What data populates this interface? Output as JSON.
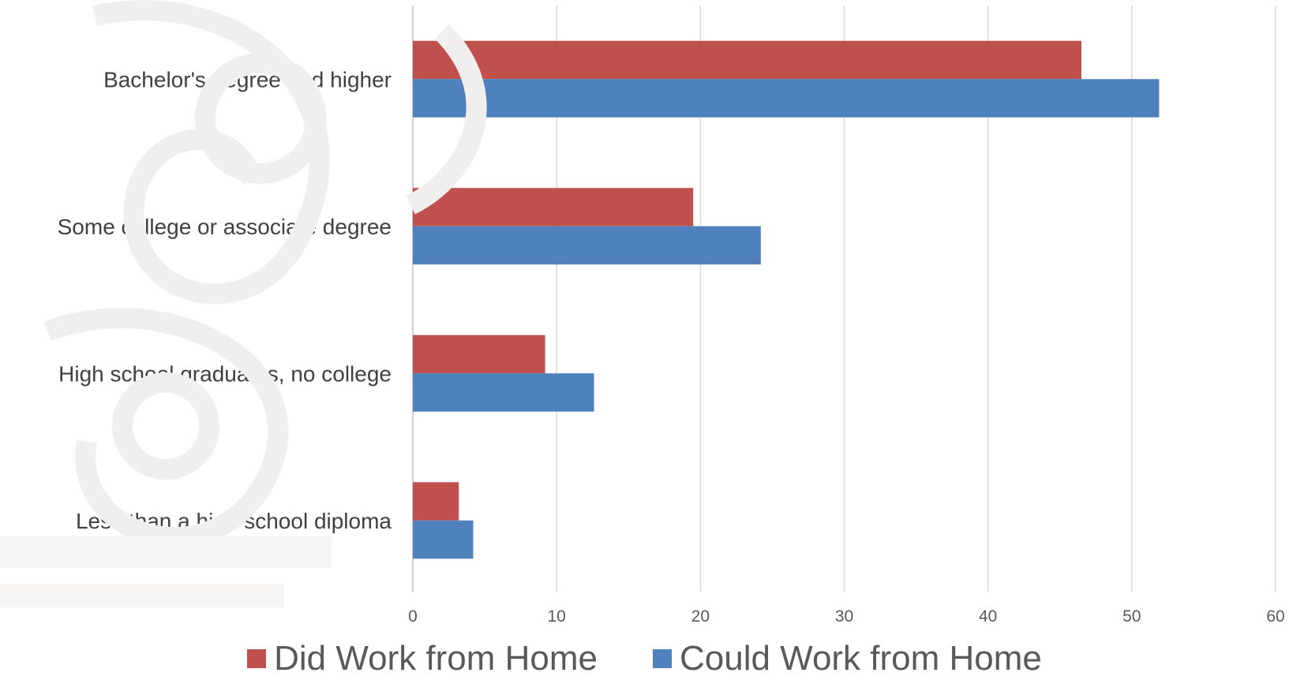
{
  "chart_data": {
    "type": "bar",
    "orientation": "horizontal",
    "title": "",
    "xlabel": "",
    "ylabel": "",
    "categories": [
      "Bachelor's degree and higher",
      "Some college or associate degree",
      "High school graduates, no college",
      "Less than a high school diploma"
    ],
    "series": [
      {
        "name": "Did Work from Home",
        "color": "#c0504d",
        "values": [
          46.5,
          19.5,
          9.2,
          3.2
        ]
      },
      {
        "name": "Could Work from Home",
        "color": "#4f81bd",
        "values": [
          51.9,
          24.2,
          12.6,
          4.2
        ]
      }
    ],
    "xlim": [
      0,
      60
    ],
    "xticks": [
      "0",
      "10",
      "20",
      "30",
      "40",
      "50",
      "60"
    ],
    "grid": "vertical",
    "legend": "bottom"
  }
}
